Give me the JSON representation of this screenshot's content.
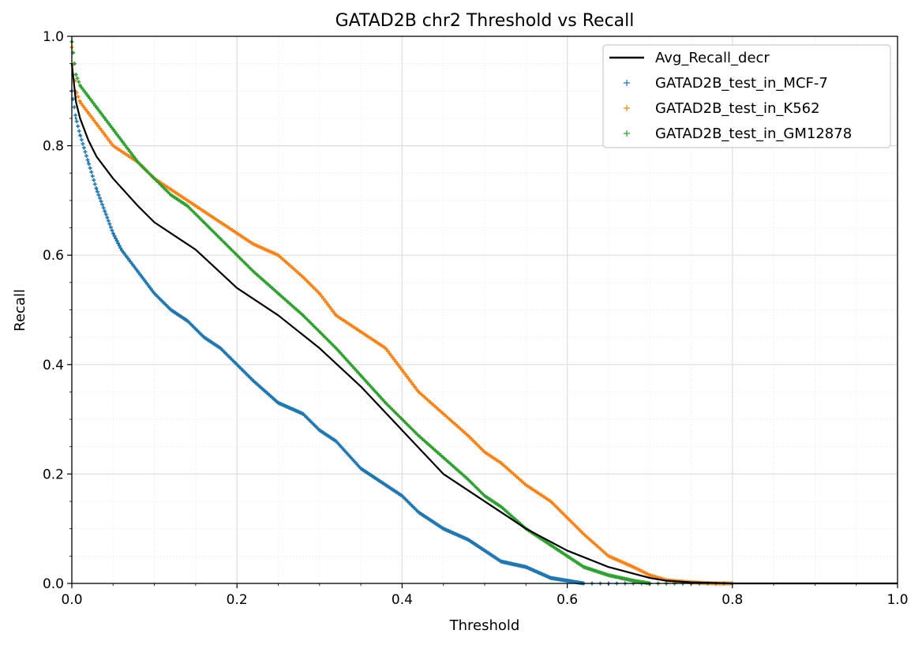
{
  "chart_data": {
    "type": "scatter",
    "title": "GATAD2B chr2 Threshold vs Recall",
    "xlabel": "Threshold",
    "ylabel": "Recall",
    "xlim": [
      0.0,
      1.0
    ],
    "ylim": [
      0.0,
      1.0
    ],
    "x_ticks": [
      "0.0",
      "0.2",
      "0.4",
      "0.6",
      "0.8",
      "1.0"
    ],
    "y_ticks": [
      "0.0",
      "0.2",
      "0.4",
      "0.6",
      "0.8",
      "1.0"
    ],
    "grid": true,
    "minor_grid": true,
    "legend_position": "top-right",
    "series": [
      {
        "name": "Avg_Recall_decr",
        "kind": "line",
        "color": "#000000",
        "x": [
          0.0,
          0.005,
          0.01,
          0.02,
          0.03,
          0.05,
          0.08,
          0.1,
          0.13,
          0.15,
          0.2,
          0.25,
          0.3,
          0.35,
          0.4,
          0.45,
          0.5,
          0.55,
          0.6,
          0.65,
          0.7,
          0.72,
          0.75,
          0.8,
          1.0
        ],
        "y": [
          0.95,
          0.88,
          0.85,
          0.81,
          0.78,
          0.74,
          0.69,
          0.66,
          0.63,
          0.61,
          0.54,
          0.49,
          0.43,
          0.36,
          0.28,
          0.2,
          0.15,
          0.1,
          0.06,
          0.03,
          0.01,
          0.005,
          0.002,
          0.0,
          0.0
        ]
      },
      {
        "name": "GATAD2B_test_in_MCF-7",
        "kind": "scatter",
        "marker": "+",
        "color": "#1f77b4",
        "x": [
          0.0,
          0.005,
          0.01,
          0.02,
          0.03,
          0.04,
          0.05,
          0.06,
          0.08,
          0.1,
          0.12,
          0.14,
          0.16,
          0.18,
          0.2,
          0.22,
          0.25,
          0.28,
          0.3,
          0.32,
          0.35,
          0.38,
          0.4,
          0.42,
          0.45,
          0.48,
          0.5,
          0.52,
          0.55,
          0.58,
          0.6,
          0.62
        ],
        "y": [
          0.9,
          0.85,
          0.82,
          0.77,
          0.72,
          0.68,
          0.64,
          0.61,
          0.57,
          0.53,
          0.5,
          0.48,
          0.45,
          0.43,
          0.4,
          0.37,
          0.33,
          0.31,
          0.28,
          0.26,
          0.21,
          0.18,
          0.16,
          0.13,
          0.1,
          0.08,
          0.06,
          0.04,
          0.03,
          0.01,
          0.005,
          0.0
        ]
      },
      {
        "name": "GATAD2B_test_in_K562",
        "kind": "scatter",
        "marker": "+",
        "color": "#ff7f0e",
        "x": [
          0.0,
          0.005,
          0.01,
          0.02,
          0.03,
          0.04,
          0.05,
          0.06,
          0.08,
          0.1,
          0.12,
          0.14,
          0.16,
          0.18,
          0.2,
          0.22,
          0.25,
          0.28,
          0.3,
          0.32,
          0.35,
          0.38,
          0.4,
          0.42,
          0.45,
          0.48,
          0.5,
          0.52,
          0.55,
          0.58,
          0.6,
          0.62,
          0.65,
          0.68,
          0.7,
          0.72,
          0.75,
          0.78,
          0.8
        ],
        "y": [
          0.98,
          0.9,
          0.88,
          0.86,
          0.84,
          0.82,
          0.8,
          0.79,
          0.77,
          0.74,
          0.72,
          0.7,
          0.68,
          0.66,
          0.64,
          0.62,
          0.6,
          0.56,
          0.53,
          0.49,
          0.46,
          0.43,
          0.39,
          0.35,
          0.31,
          0.27,
          0.24,
          0.22,
          0.18,
          0.15,
          0.12,
          0.09,
          0.05,
          0.03,
          0.015,
          0.006,
          0.002,
          0.0,
          0.0
        ]
      },
      {
        "name": "GATAD2B_test_in_GM12878",
        "kind": "scatter",
        "marker": "+",
        "color": "#2ca02c",
        "x": [
          0.0,
          0.005,
          0.01,
          0.02,
          0.03,
          0.04,
          0.05,
          0.06,
          0.08,
          0.1,
          0.12,
          0.14,
          0.16,
          0.18,
          0.2,
          0.22,
          0.25,
          0.28,
          0.3,
          0.32,
          0.35,
          0.38,
          0.4,
          0.42,
          0.45,
          0.48,
          0.5,
          0.52,
          0.55,
          0.58,
          0.6,
          0.62,
          0.65,
          0.68,
          0.7
        ],
        "y": [
          0.99,
          0.93,
          0.91,
          0.89,
          0.87,
          0.85,
          0.83,
          0.81,
          0.77,
          0.74,
          0.71,
          0.69,
          0.66,
          0.63,
          0.6,
          0.57,
          0.53,
          0.49,
          0.46,
          0.43,
          0.38,
          0.33,
          0.3,
          0.27,
          0.23,
          0.19,
          0.16,
          0.14,
          0.1,
          0.07,
          0.05,
          0.03,
          0.015,
          0.005,
          0.0
        ]
      }
    ]
  }
}
